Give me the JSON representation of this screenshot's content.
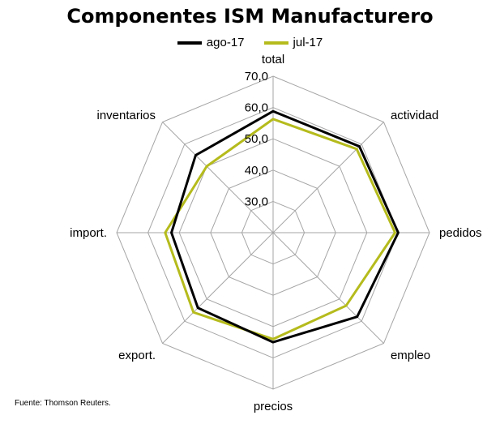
{
  "chart_data": {
    "type": "radar",
    "title": "Componentes  ISM Manufacturero",
    "categories": [
      "total",
      "actividad",
      "pedidos",
      "empleo",
      "precios",
      "export.",
      "import.",
      "inventarios"
    ],
    "series": [
      {
        "name": "ago-17",
        "color": "#000000",
        "values": [
          58.8,
          59.0,
          60.0,
          58.0,
          55.0,
          54.0,
          52.5,
          55.0
        ]
      },
      {
        "name": "jul-17",
        "color": "#b5bb1c",
        "values": [
          56.3,
          57.8,
          59.0,
          53.0,
          54.0,
          56.0,
          54.5,
          50.0
        ]
      }
    ],
    "r_min": 20.0,
    "r_max": 70.0,
    "ticks": [
      "30,0",
      "40,0",
      "50,0",
      "60,0",
      "70,0"
    ],
    "grid": true,
    "legend_position": "top"
  },
  "source": "Fuente: Thomson Reuters."
}
